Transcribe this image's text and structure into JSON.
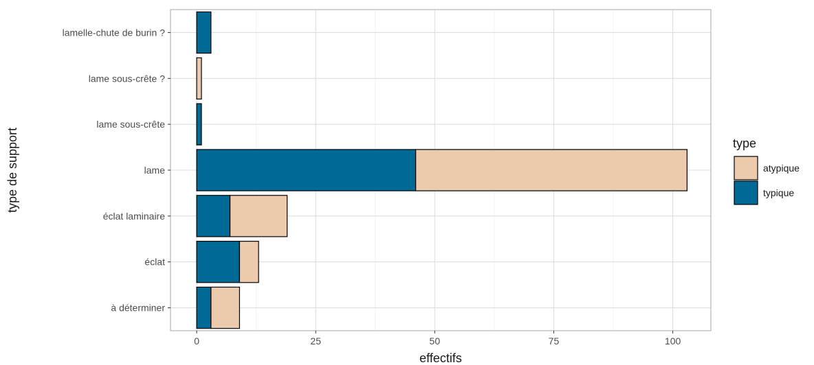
{
  "chart_data": {
    "type": "bar",
    "orientation": "horizontal",
    "stacked": true,
    "categories": [
      "à déterminer",
      "éclat",
      "éclat laminaire",
      "lame",
      "lame sous-crête",
      "lame sous-crête ?",
      "lamelle-chute de burin ?"
    ],
    "series": [
      {
        "name": "typique",
        "color": "#006a96",
        "values": [
          3,
          9,
          7,
          46,
          1,
          0,
          3
        ]
      },
      {
        "name": "atypique",
        "color": "#ebcaae",
        "values": [
          6,
          4,
          12,
          57,
          0,
          1,
          0
        ]
      }
    ],
    "xlabel": "effectifs",
    "ylabel": "type de support",
    "xlim": [
      -5.5,
      108
    ],
    "xticks": [
      0,
      25,
      50,
      75,
      100
    ],
    "grid": true,
    "legend": {
      "title": "type",
      "position": "right",
      "entries": [
        "atypique",
        "typique"
      ]
    },
    "theme": {
      "panel_border": "#b3b3b3",
      "grid_major": "#dedede",
      "grid_minor": "#efefef",
      "bar_outline": "#000000"
    }
  }
}
